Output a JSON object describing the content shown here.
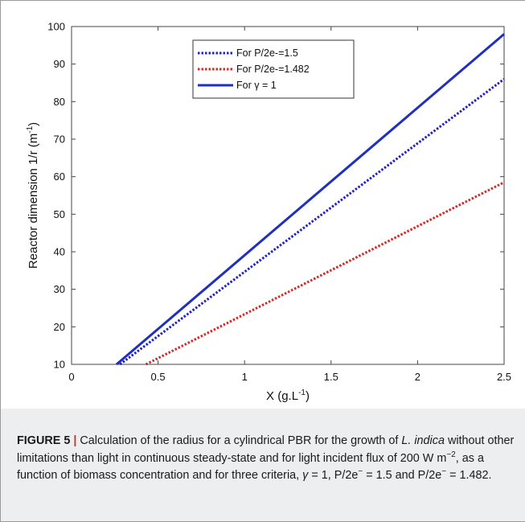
{
  "chart_data": {
    "type": "line",
    "xlabel_main": "X (g.L",
    "xlabel_sup": "-1",
    "xlabel_end": ")",
    "ylabel_main": "Reactor dimension 1/r (m",
    "ylabel_sup": "-1",
    "ylabel_end": ")",
    "xlim": [
      0,
      2.5
    ],
    "ylim": [
      10,
      100
    ],
    "xticks": [
      "0",
      "0.5",
      "1",
      "1.5",
      "2",
      "2.5"
    ],
    "yticks": [
      "10",
      "20",
      "30",
      "40",
      "50",
      "60",
      "70",
      "80",
      "90",
      "100"
    ],
    "legend_position": "top-left",
    "series": [
      {
        "name": "For P/2e-=1.5",
        "style": "dotted",
        "color": "#2222c8",
        "x": [
          0.28,
          2.5
        ],
        "y": [
          10,
          86
        ]
      },
      {
        "name": "For P/2e-=1.482",
        "style": "dotted",
        "color": "#d42a2a",
        "x": [
          0.43,
          2.5
        ],
        "y": [
          10,
          58.5
        ]
      },
      {
        "name": "For γ = 1",
        "style": "solid",
        "color": "#1f2fbf",
        "x": [
          0.26,
          2.5
        ],
        "y": [
          10,
          98
        ]
      }
    ]
  },
  "caption": {
    "label": "FIGURE 5",
    "separator": "|",
    "t1": " Calculation of the radius for a cylindrical PBR for the growth of ",
    "species": "L. indica",
    "t2": " without other limitations than light in continuous steady-state and for light incident flux of 200 W m",
    "sup1": "−2",
    "t3": ", as a function of biomass concentration and for three criteria, ",
    "gamma": "γ",
    "t4": " = 1, P/2e",
    "sup2": "−",
    "t5": " = 1.5 and P/2e",
    "sup3": "−",
    "t6": " = 1.482."
  }
}
